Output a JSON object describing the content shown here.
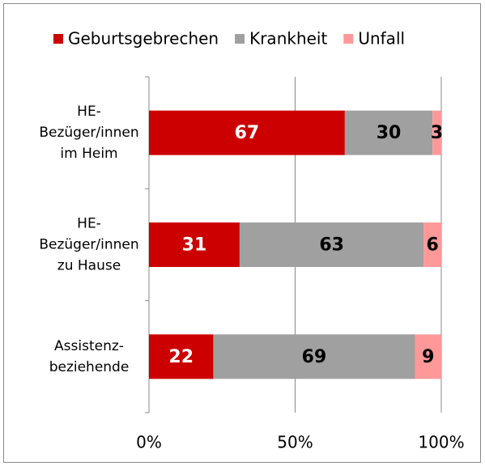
{
  "chart_data": {
    "type": "stacked-bar-horizontal",
    "categories": [
      [
        "HE-",
        "Bezüger/innen",
        "im Heim"
      ],
      [
        "HE-",
        "Bezüger/innen",
        "zu Hause"
      ],
      [
        "Assistenz-",
        "beziehende"
      ]
    ],
    "series": [
      {
        "name": "Geburtsgebrechen",
        "color": "#cc0000",
        "label_color": "#ffffff",
        "values": [
          67,
          31,
          22
        ]
      },
      {
        "name": "Krankheit",
        "color": "#a0a0a0",
        "label_color": "#000000",
        "values": [
          30,
          63,
          69
        ]
      },
      {
        "name": "Unfall",
        "color": "#ff9999",
        "label_color": "#000000",
        "values": [
          3,
          6,
          9
        ]
      }
    ],
    "xlim": [
      0,
      100
    ],
    "xticks": [
      {
        "value": 0,
        "label": "0%"
      },
      {
        "value": 50,
        "label": "50%"
      },
      {
        "value": 100,
        "label": "100%"
      }
    ],
    "grid": true,
    "legend": "top"
  }
}
